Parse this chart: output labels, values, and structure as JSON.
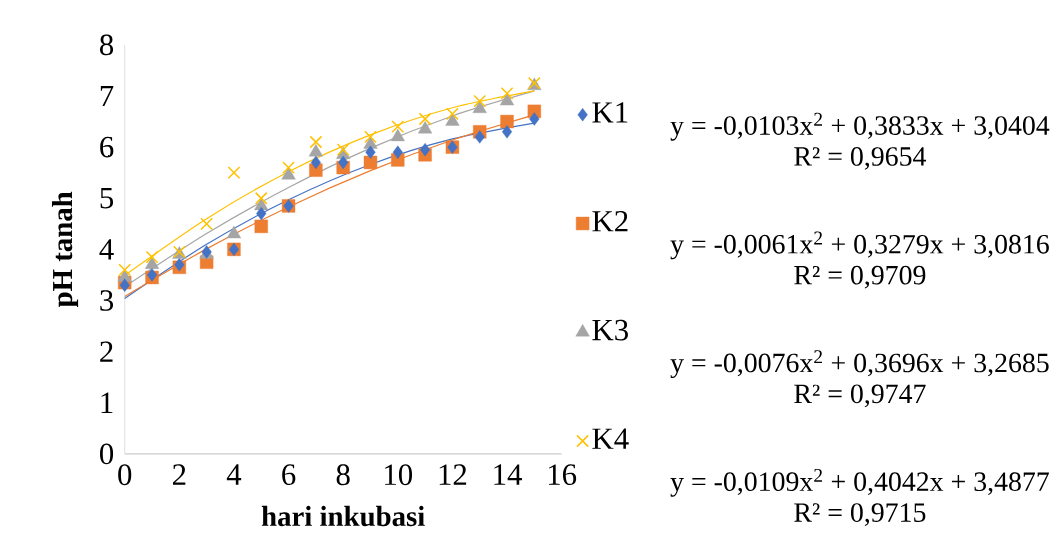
{
  "chart_data": {
    "type": "scatter",
    "xlabel": "hari inkubasi",
    "ylabel": "pH tanah",
    "x": [
      0,
      1,
      2,
      3,
      4,
      5,
      6,
      7,
      8,
      9,
      10,
      11,
      12,
      13,
      14,
      15
    ],
    "series": [
      {
        "name": "K1",
        "color": "#4472c4",
        "marker": "diamond",
        "values": [
          3.3,
          3.5,
          3.7,
          3.95,
          4.0,
          4.7,
          4.85,
          5.7,
          5.7,
          5.9,
          5.9,
          5.95,
          6.0,
          6.2,
          6.3,
          6.55
        ]
      },
      {
        "name": "K2",
        "color": "#ed7d31",
        "marker": "square",
        "values": [
          3.35,
          3.45,
          3.65,
          3.75,
          4.0,
          4.45,
          4.85,
          5.55,
          5.6,
          5.7,
          5.75,
          5.85,
          6.0,
          6.3,
          6.5,
          6.7
        ]
      },
      {
        "name": "K3",
        "color": "#a5a5a5",
        "marker": "triangle",
        "values": [
          3.45,
          3.7,
          3.9,
          3.9,
          4.3,
          4.85,
          5.45,
          5.9,
          5.85,
          6.05,
          6.2,
          6.35,
          6.5,
          6.75,
          6.9,
          7.2
        ]
      },
      {
        "name": "K4",
        "color": "#ffc000",
        "marker": "cross",
        "values": [
          3.6,
          3.85,
          3.95,
          4.5,
          5.5,
          5.0,
          5.6,
          6.1,
          5.95,
          6.2,
          6.4,
          6.55,
          6.65,
          6.9,
          7.05,
          7.25
        ]
      },
      {
        "type": "line",
        "color": "#4472c4",
        "marker": "none",
        "x": [
          0,
          3,
          6,
          9,
          12,
          15
        ],
        "values": [
          3.04,
          4.1,
          4.97,
          5.66,
          6.16,
          6.47
        ]
      },
      {
        "type": "line",
        "color": "#ed7d31",
        "marker": "none",
        "x": [
          0,
          3,
          6,
          9,
          12,
          15
        ],
        "values": [
          3.08,
          4.01,
          4.83,
          5.54,
          6.14,
          6.63
        ]
      },
      {
        "type": "line",
        "color": "#a5a5a5",
        "marker": "none",
        "x": [
          0,
          3,
          6,
          9,
          12,
          15
        ],
        "values": [
          3.27,
          4.31,
          5.21,
          5.98,
          6.61,
          7.1
        ]
      },
      {
        "type": "line",
        "color": "#ffc000",
        "marker": "none",
        "x": [
          0,
          3,
          6,
          9,
          12,
          15
        ],
        "values": [
          3.49,
          4.6,
          5.52,
          6.24,
          6.77,
          7.1
        ]
      }
    ],
    "xlim": [
      0,
      16
    ],
    "xticks": [
      0,
      2,
      4,
      6,
      8,
      10,
      12,
      14,
      16
    ],
    "ylim": [
      0,
      8
    ],
    "yticks": [
      0,
      1,
      2,
      3,
      4,
      5,
      6,
      7,
      8
    ],
    "grid": false,
    "legend": "right",
    "annotations": [
      "y = -0,0103x$^{2}$ + 0,3833x + 3,0404",
      "R² = 0,9654",
      "y = -0,0061x$^{2}$ + 0,3279x + 3,0816",
      "R² = 0,9709",
      "y = -0,0076x$^{2}$ + 0,3696x + 3,2685",
      "R² = 0,9747",
      "y = -0,0109x$^{2}$ + 0,4042x + 3,4877",
      "R² = 0,9715"
    ]
  }
}
